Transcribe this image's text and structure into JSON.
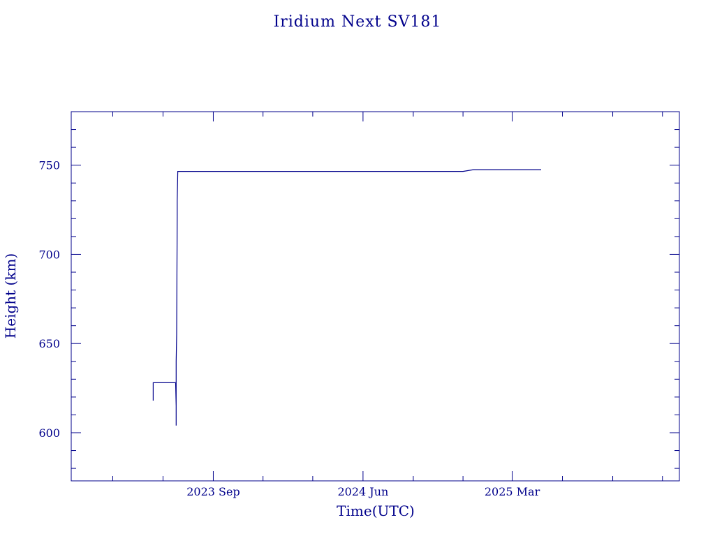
{
  "chart_data": {
    "type": "line",
    "title": "Iridium Next SV181",
    "xlabel": "Time(UTC)",
    "ylabel": "Height (km)",
    "x_ticks": [
      "2023 Sep",
      "2024 Jun",
      "2025 Mar"
    ],
    "y_ticks": [
      600,
      650,
      700,
      750
    ],
    "xlim": [
      "2022-12-15",
      "2026-01-01"
    ],
    "ylim": [
      573,
      780
    ],
    "grid": false,
    "color": "#00008b",
    "series": [
      {
        "points": [
          [
            "2023-05-14",
            618
          ],
          [
            "2023-05-14",
            628
          ],
          [
            "2023-05-15",
            628
          ],
          [
            "2023-05-22",
            628
          ],
          [
            "2023-06-10",
            628
          ],
          [
            "2023-06-24",
            628
          ],
          [
            "2023-06-25",
            615
          ],
          [
            "2023-06-25",
            604
          ],
          [
            "2023-06-25",
            640
          ],
          [
            "2023-06-26",
            655
          ],
          [
            "2023-06-27",
            722
          ],
          [
            "2023-06-27",
            730
          ],
          [
            "2023-06-28",
            746.5
          ],
          [
            "2023-08-01",
            746.5
          ],
          [
            "2024-01-01",
            746.5
          ],
          [
            "2024-06-01",
            746.5
          ],
          [
            "2024-12-01",
            746.5
          ],
          [
            "2024-12-20",
            747.5
          ],
          [
            "2025-03-01",
            747.5
          ],
          [
            "2025-04-23",
            747.5
          ]
        ]
      }
    ]
  }
}
